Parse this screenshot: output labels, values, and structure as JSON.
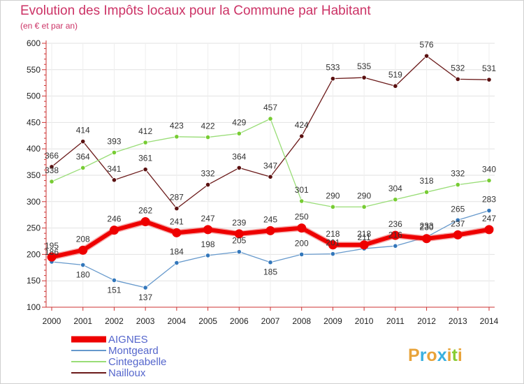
{
  "chart_data": {
    "type": "line",
    "title": "Evolution des Impôts locaux pour la Commune par Habitant",
    "subtitle": "(en € et par an)",
    "x": [
      "2000",
      "2001",
      "2002",
      "2003",
      "2004",
      "2005",
      "2006",
      "2007",
      "2008",
      "2009",
      "2010",
      "2011",
      "2012",
      "2013",
      "2014"
    ],
    "ylim": [
      100,
      600
    ],
    "yticks": [
      "100",
      "150",
      "200",
      "250",
      "300",
      "350",
      "400",
      "450",
      "500",
      "550",
      "600"
    ],
    "grid": true,
    "legend_position": "bottom-left",
    "series": [
      {
        "name": "Nailloux",
        "color": "#6b1a1a",
        "marker": "#5a1010",
        "values": [
          366,
          414,
          341,
          361,
          287,
          332,
          364,
          347,
          424,
          533,
          535,
          519,
          576,
          532,
          531
        ],
        "labels": [
          "366",
          "414",
          "341",
          "361",
          "287",
          "332",
          "364",
          "347",
          "424",
          "533",
          "535",
          "519",
          "576",
          "532",
          "531"
        ]
      },
      {
        "name": "Cintegabelle",
        "color": "#99dd77",
        "marker": "#77cc33",
        "values": [
          338,
          364,
          393,
          412,
          423,
          422,
          429,
          457,
          301,
          290,
          290,
          304,
          318,
          332,
          340
        ],
        "labels": [
          "338",
          "364",
          "393",
          "412",
          "423",
          "422",
          "429",
          "457",
          "301",
          "290",
          "290",
          "304",
          "318",
          "332",
          "340"
        ]
      },
      {
        "name": "Montgeard",
        "color": "#6699cc",
        "marker": "#3377bb",
        "values": [
          186,
          180,
          151,
          137,
          184,
          198,
          205,
          185,
          200,
          201,
          211,
          216,
          233,
          265,
          283
        ],
        "labels": [
          "186",
          "180",
          "151",
          "137",
          "184",
          "198",
          "205",
          "185",
          "200",
          "201",
          "211",
          "216",
          "233",
          "265",
          "283"
        ]
      },
      {
        "name": "AIGNES",
        "color": "#ee0000",
        "marker": "#ee0000",
        "values": [
          195,
          208,
          246,
          262,
          241,
          247,
          239,
          245,
          250,
          218,
          218,
          236,
          230,
          237,
          247
        ],
        "labels": [
          "195",
          "208",
          "246",
          "262",
          "241",
          "247",
          "239",
          "245",
          "250",
          "218",
          "218",
          "236",
          "230",
          "237",
          "247"
        ]
      }
    ],
    "legend": [
      "AIGNES",
      "Montgeard",
      "Cintegabelle",
      "Nailloux"
    ]
  },
  "branding": {
    "letters": [
      "P",
      "r",
      "o",
      "x",
      "i",
      "t",
      "i"
    ],
    "colors": [
      "#e8a33a",
      "#3ab0e0",
      "#e8a33a",
      "#3ab0e0",
      "#e8a33a",
      "#88cc33",
      "#e8a33a"
    ]
  }
}
